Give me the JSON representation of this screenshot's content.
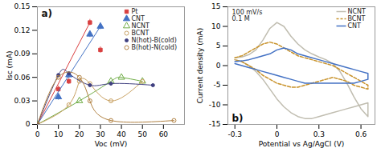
{
  "chart_data": [
    {
      "type": "scatter",
      "title": "a)",
      "xlabel": "Voc (mV)",
      "ylabel": "Isc (mA)",
      "xlim": [
        0,
        70
      ],
      "ylim": [
        0,
        0.15
      ],
      "xticks": [
        0,
        10,
        20,
        30,
        40,
        50,
        60
      ],
      "yticks": [
        0,
        0.03,
        0.06,
        0.09,
        0.12,
        0.15
      ],
      "legend": "upper right",
      "series": [
        {
          "name": "Pt",
          "color": "#d94040",
          "marker": "square",
          "line_style": "straight",
          "x": [
            0,
            10,
            15,
            25,
            30
          ],
          "values": [
            0,
            0.045,
            0.055,
            0.13,
            0.095
          ],
          "yerr": [
            0.004,
            0.004,
            0.004,
            0.004,
            0.004
          ],
          "line": {
            "x": [
              0,
              25
            ],
            "values": [
              0,
              0.13
            ]
          }
        },
        {
          "name": "CNT",
          "color": "#4472c4",
          "marker": "triangle",
          "line_style": "straight",
          "x": [
            0,
            10,
            15,
            25,
            30
          ],
          "values": [
            0,
            0.035,
            0.063,
            0.115,
            0.125
          ],
          "yerr": [
            0.004,
            0.004,
            0.004,
            0.004,
            0.004
          ],
          "line": {
            "x": [
              0,
              30
            ],
            "values": [
              0,
              0.125
            ]
          }
        },
        {
          "name": "NCNT",
          "color": "#70ad47",
          "marker": "triangle-open",
          "line_style": "smooth",
          "x": [
            0,
            20,
            35,
            40,
            50
          ],
          "values": [
            0,
            0.03,
            0.055,
            0.06,
            0.055
          ]
        },
        {
          "name": "BCNT",
          "color": "#c8a060",
          "marker": "circle-open",
          "line_style": "smooth",
          "x": [
            0,
            15,
            20,
            25,
            35,
            50
          ],
          "values": [
            0,
            0.025,
            0.055,
            0.052,
            0.03,
            0.055
          ]
        },
        {
          "name": "N(hot)-B(cold)",
          "color": "#404080",
          "marker": "dot",
          "line_style": "smooth",
          "x": [
            0,
            10,
            15,
            25,
            35,
            55
          ],
          "values": [
            0,
            0.063,
            0.065,
            0.05,
            0.052,
            0.05
          ]
        },
        {
          "name": "B(hot)-N(cold)",
          "color": "#b08040",
          "marker": "circle-open",
          "line_style": "smooth",
          "x": [
            0,
            10,
            20,
            25,
            35,
            65
          ],
          "values": [
            0,
            0.06,
            0.06,
            0.03,
            0.005,
            0.005
          ]
        }
      ]
    },
    {
      "type": "line",
      "title": "b)",
      "annotation": "100 mV/s\n0.1 M",
      "xlabel": "Potential vs Ag/AgCl (V)",
      "ylabel": "Current density (mA)",
      "xlim": [
        -0.35,
        0.7
      ],
      "ylim": [
        -15,
        15
      ],
      "xticks": [
        -0.3,
        0,
        0.3,
        0.6
      ],
      "yticks": [
        -15,
        -10,
        -5,
        0,
        5,
        10,
        15
      ],
      "legend": "upper right",
      "series": [
        {
          "name": "NCNT",
          "color": "#c0bdb0",
          "line_style": "solid",
          "x": [
            -0.3,
            -0.25,
            -0.2,
            -0.15,
            -0.1,
            -0.05,
            0,
            0.05,
            0.1,
            0.15,
            0.2,
            0.25,
            0.3,
            0.35,
            0.4,
            0.45,
            0.5,
            0.55,
            0.6,
            0.65
          ],
          "y_upper": [
            2.0,
            2.2,
            2.8,
            4.0,
            6.5,
            9.5,
            11.0,
            10.0,
            7.5,
            5.5,
            4.0,
            3.0,
            2.2,
            1.5,
            0.5,
            -1.5,
            -4.5,
            -8.0,
            -11.0,
            -13.0
          ],
          "y_lower": [
            1.5,
            1.0,
            0.0,
            -1.5,
            -3.5,
            -6.0,
            -8.5,
            -10.5,
            -12.0,
            -13.0,
            -13.5,
            -13.5,
            -13.0,
            -12.5,
            -12.0,
            -11.5,
            -11.0,
            -10.5,
            -10.0,
            -9.5
          ]
        },
        {
          "name": "BCNT",
          "color": "#c8922a",
          "line_style": "dashed",
          "x": [
            -0.3,
            -0.25,
            -0.2,
            -0.15,
            -0.1,
            -0.05,
            0,
            0.05,
            0.1,
            0.15,
            0.2,
            0.25,
            0.3,
            0.35,
            0.4,
            0.45,
            0.5,
            0.55,
            0.6,
            0.65
          ],
          "y_upper": [
            2.0,
            2.5,
            3.5,
            4.5,
            5.5,
            6.0,
            5.5,
            4.5,
            3.5,
            2.5,
            2.0,
            1.5,
            1.0,
            0.5,
            0.0,
            -1.0,
            -2.0,
            -3.0,
            -4.0,
            -5.0
          ],
          "y_lower": [
            1.5,
            1.0,
            0.0,
            -1.0,
            -2.5,
            -3.5,
            -4.5,
            -5.0,
            -5.5,
            -5.5,
            -5.0,
            -4.5,
            -4.0,
            -3.5,
            -3.0,
            -3.5,
            -4.0,
            -5.0,
            -5.5,
            -6.0
          ]
        },
        {
          "name": "CNT",
          "color": "#4472c4",
          "line_style": "solid",
          "x": [
            -0.3,
            -0.25,
            -0.2,
            -0.15,
            -0.1,
            -0.05,
            0,
            0.05,
            0.1,
            0.15,
            0.2,
            0.25,
            0.3,
            0.35,
            0.4,
            0.45,
            0.5,
            0.55,
            0.6,
            0.65
          ],
          "y_upper": [
            1.0,
            1.2,
            1.5,
            2.0,
            2.5,
            3.0,
            4.0,
            4.5,
            4.0,
            3.0,
            2.5,
            2.0,
            1.5,
            1.0,
            0.5,
            0.0,
            -0.5,
            -1.0,
            -1.5,
            -2.0
          ],
          "y_lower": [
            0.5,
            0.0,
            -0.5,
            -1.0,
            -1.5,
            -2.0,
            -2.5,
            -3.0,
            -3.5,
            -4.0,
            -4.5,
            -4.5,
            -4.5,
            -4.5,
            -4.5,
            -4.5,
            -4.5,
            -4.5,
            -4.0,
            -3.5
          ]
        }
      ]
    }
  ]
}
